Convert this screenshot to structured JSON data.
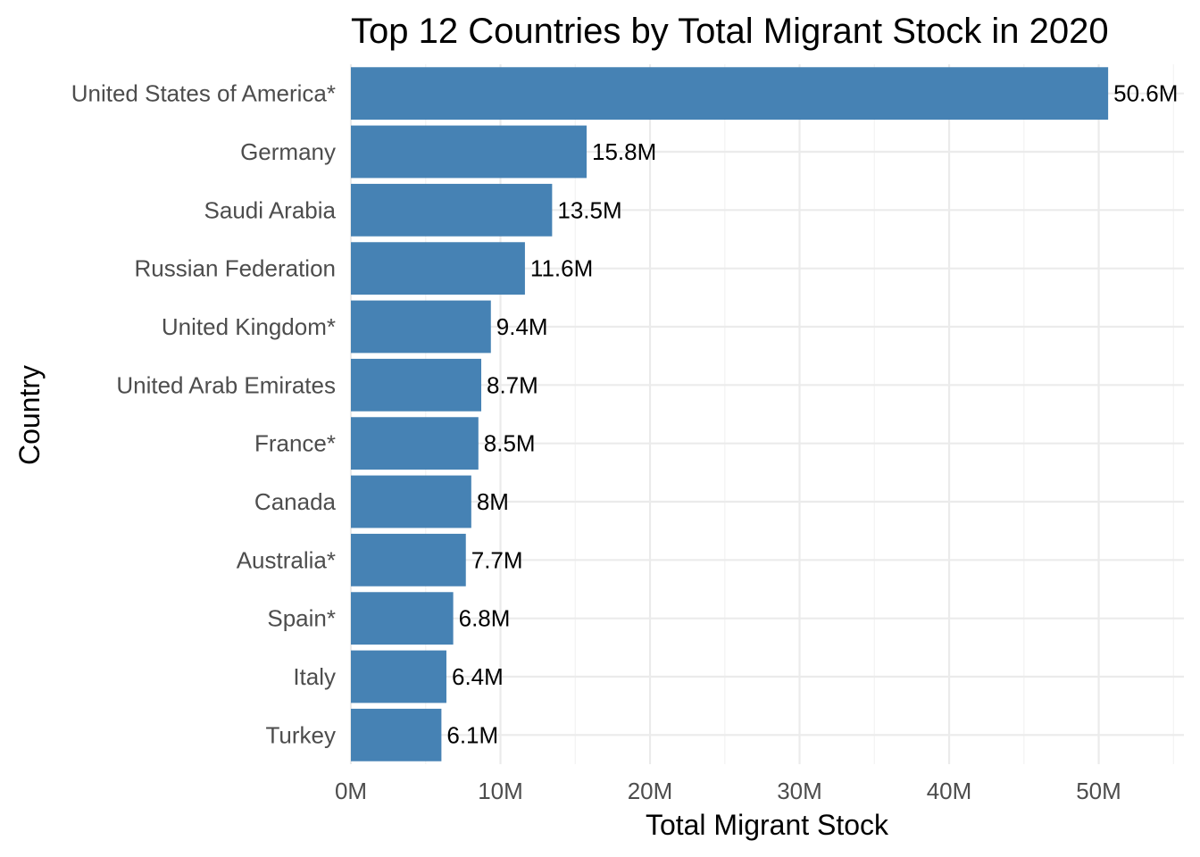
{
  "chart_data": {
    "type": "bar",
    "orientation": "horizontal",
    "title": "Top 12 Countries by Total Migrant Stock in 2020",
    "xlabel": "Total Migrant Stock",
    "ylabel": "Country",
    "categories": [
      "United States of America*",
      "Germany",
      "Saudi Arabia",
      "Russian Federation",
      "United Kingdom*",
      "United Arab Emirates",
      "France*",
      "Canada",
      "Australia*",
      "Spain*",
      "Italy",
      "Turkey"
    ],
    "values": [
      50632836,
      15762457,
      13454842,
      11636911,
      9359587,
      8716332,
      8524876,
      8049323,
      7685860,
      6842202,
      6386998,
      6052652
    ],
    "value_labels": [
      "50.6M",
      "15.8M",
      "13.5M",
      "11.6M",
      "9.4M",
      "8.7M",
      "8.5M",
      "8M",
      "7.7M",
      "6.8M",
      "6.4M",
      "6.1M"
    ],
    "x_ticks": [
      0,
      10000000,
      20000000,
      30000000,
      40000000,
      50000000
    ],
    "x_tick_labels": [
      "0M",
      "10M",
      "20M",
      "30M",
      "40M",
      "50M"
    ],
    "xlim": [
      0,
      55700000
    ],
    "grid": true,
    "legend": "none",
    "bar_color": "#4682B4"
  }
}
